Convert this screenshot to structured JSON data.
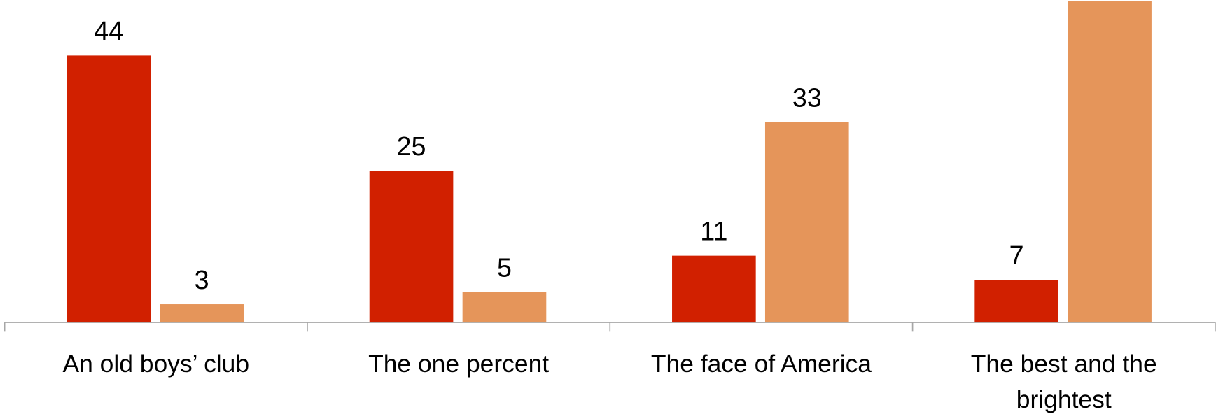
{
  "chart_data": {
    "type": "bar",
    "categories": [
      "An old boys’ club",
      "The one percent",
      "The face of America",
      "The best and the brightest"
    ],
    "series": [
      {
        "color": "#d12000",
        "values": [
          44,
          25,
          11,
          7
        ]
      },
      {
        "color": "#e5955a",
        "values": [
          3,
          5,
          33,
          53
        ]
      }
    ],
    "ylim": [
      0,
      53
    ]
  }
}
